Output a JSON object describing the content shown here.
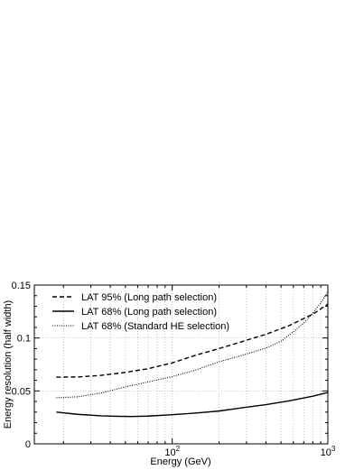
{
  "chart_data": {
    "type": "line",
    "title": "",
    "xlabel": "Energy (GeV)",
    "ylabel": "Energy resolution (half width)",
    "xscale": "log",
    "xlim": [
      13,
      1000
    ],
    "ylim": [
      0,
      0.15
    ],
    "x_ticks": [
      {
        "value": 100,
        "base": "10",
        "exp": "2"
      },
      {
        "value": 1000,
        "base": "10",
        "exp": "3"
      }
    ],
    "y_ticks": [
      {
        "value": 0,
        "label": "0"
      },
      {
        "value": 0.05,
        "label": "0.05"
      },
      {
        "value": 0.1,
        "label": "0.1"
      },
      {
        "value": 0.15,
        "label": "0.15"
      }
    ],
    "grid": true,
    "legend_position": "top-left",
    "series": [
      {
        "name": "LAT 95% (Long path selection)",
        "style": "dashed",
        "color": "#000000",
        "points": [
          [
            18,
            0.063
          ],
          [
            25,
            0.0632
          ],
          [
            35,
            0.0647
          ],
          [
            50,
            0.0675
          ],
          [
            70,
            0.071
          ],
          [
            100,
            0.0765
          ],
          [
            140,
            0.0835
          ],
          [
            200,
            0.09
          ],
          [
            280,
            0.0965
          ],
          [
            400,
            0.1035
          ],
          [
            560,
            0.1115
          ],
          [
            800,
            0.1225
          ],
          [
            1000,
            0.132
          ]
        ]
      },
      {
        "name": "LAT 68% (Long path selection)",
        "style": "solid",
        "color": "#000000",
        "points": [
          [
            18,
            0.03
          ],
          [
            25,
            0.0278
          ],
          [
            35,
            0.0265
          ],
          [
            45,
            0.026
          ],
          [
            55,
            0.0258
          ],
          [
            70,
            0.0262
          ],
          [
            100,
            0.0275
          ],
          [
            140,
            0.029
          ],
          [
            200,
            0.031
          ],
          [
            280,
            0.034
          ],
          [
            400,
            0.037
          ],
          [
            560,
            0.0405
          ],
          [
            800,
            0.045
          ],
          [
            1000,
            0.0485
          ]
        ]
      },
      {
        "name": "LAT 68% (Standard HE selection)",
        "style": "dotted",
        "color": "#000000",
        "points": [
          [
            18,
            0.0435
          ],
          [
            25,
            0.0445
          ],
          [
            35,
            0.048
          ],
          [
            50,
            0.0538
          ],
          [
            70,
            0.0585
          ],
          [
            100,
            0.0635
          ],
          [
            140,
            0.0695
          ],
          [
            200,
            0.0775
          ],
          [
            280,
            0.0835
          ],
          [
            400,
            0.0905
          ],
          [
            500,
            0.097
          ],
          [
            600,
            0.106
          ],
          [
            700,
            0.114
          ],
          [
            800,
            0.1235
          ],
          [
            900,
            0.133
          ],
          [
            1000,
            0.144
          ]
        ]
      }
    ]
  }
}
